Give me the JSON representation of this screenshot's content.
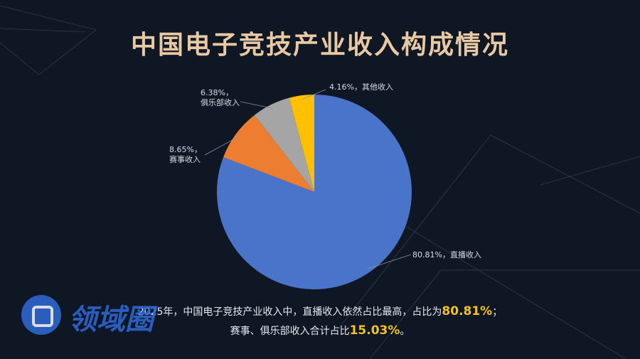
{
  "title": "中国电子竞技产业收入构成情况",
  "chart_data": {
    "type": "pie",
    "title": "中国电子竞技产业收入构成情况",
    "slices": [
      {
        "name": "直播收入",
        "value": 80.81,
        "color": "#4a74c9",
        "label": "80.81%，直播收入"
      },
      {
        "name": "赛事收入",
        "value": 8.65,
        "color": "#ed7d31",
        "label_lines": [
          "8.65%，",
          "赛事收入"
        ]
      },
      {
        "name": "俱乐部收入",
        "value": 6.38,
        "color": "#a5a5a5",
        "label_lines": [
          "6.38%，",
          "俱乐部收入"
        ]
      },
      {
        "name": "其他收入",
        "value": 4.16,
        "color": "#ffc000",
        "label": "4.16%，其他收入"
      }
    ]
  },
  "summary": {
    "line1_text": "2025年，中国电子竞技产业收入中，直播收入依然占比最高，占比为",
    "line1_value": "80.81%",
    "line1_end": "；",
    "line2_text": "赛事、俱乐部收入合计占比",
    "line2_value": "15.03%",
    "line2_end": "。"
  },
  "watermark": {
    "text": "领域圈"
  },
  "colors": {
    "background": "#0f1724",
    "title": "#e8c9a4",
    "highlight": "#f6c21c"
  }
}
